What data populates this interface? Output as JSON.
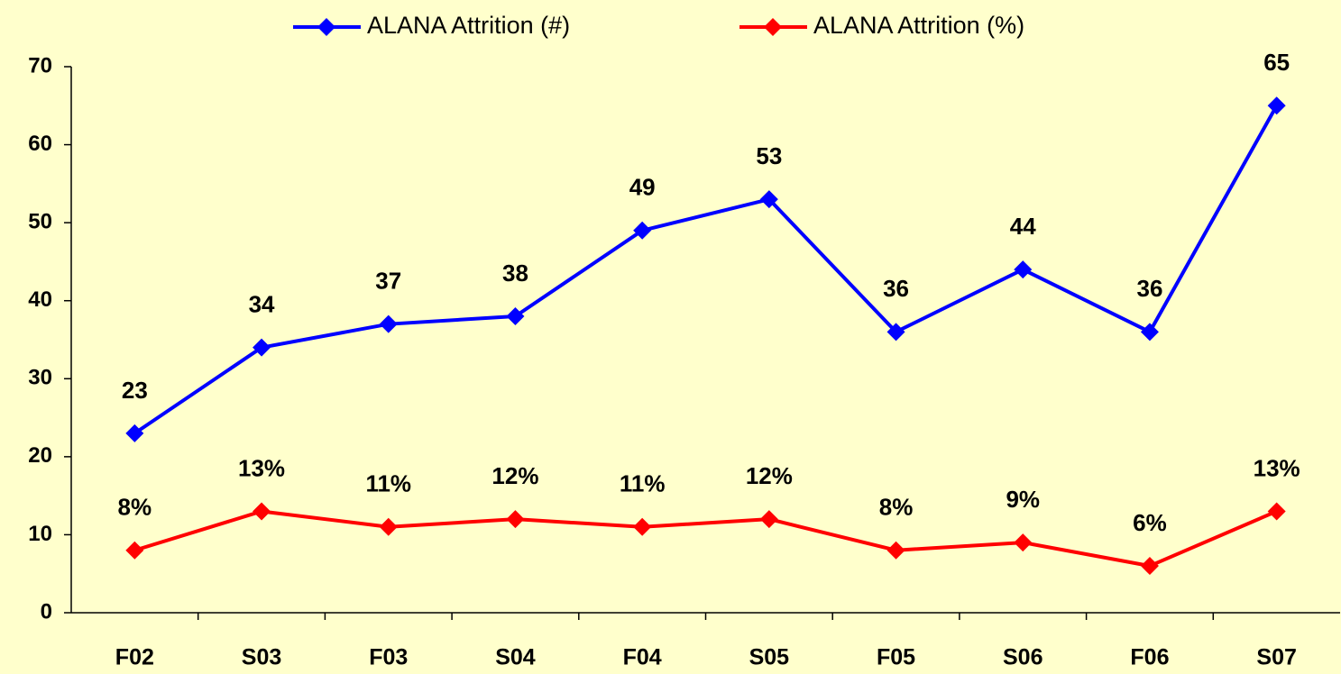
{
  "chart_data": {
    "type": "line",
    "categories": [
      "F02",
      "S03",
      "F03",
      "S04",
      "F04",
      "S05",
      "F05",
      "S06",
      "F06",
      "S07"
    ],
    "series": [
      {
        "name": "ALANA Attrition (#)",
        "color": "#0000ff",
        "values": [
          23,
          34,
          37,
          38,
          49,
          53,
          36,
          44,
          36,
          65
        ]
      },
      {
        "name": "ALANA Attrition (%)",
        "color": "#ff0000",
        "values": [
          8,
          13,
          11,
          12,
          11,
          12,
          8,
          9,
          6,
          13
        ],
        "value_labels": [
          "8%",
          "13%",
          "11%",
          "12%",
          "11%",
          "12%",
          "8%",
          "9%",
          "6%",
          "13%"
        ]
      }
    ],
    "ylim": [
      0,
      70
    ],
    "yticks": [
      0,
      10,
      20,
      30,
      40,
      50,
      60,
      70
    ],
    "grid": false,
    "legend": "top"
  }
}
